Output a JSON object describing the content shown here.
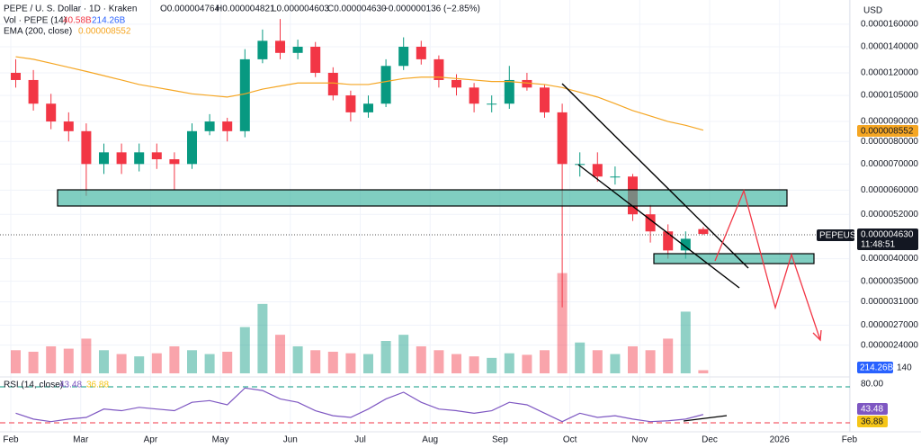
{
  "chart_data": [
    {
      "type": "candlestick",
      "header": {
        "symbol": "PEPE / U. S. Dollar · 1D · Kraken",
        "open": "O0.000004764",
        "high": "H0.000004821",
        "low": "L0.000004603",
        "close": "C0.000004630",
        "change": "−0.000000136 (−2.85%)"
      },
      "ema_label": "EMA (200, close)",
      "ema_value": "0.000008552",
      "axis_unit": "USD",
      "ticker": "PEPEUSD",
      "last_price": "0.000004630",
      "countdown": "11:48:51",
      "x_labels": [
        "Feb",
        "Mar",
        "Apr",
        "May",
        "Jun",
        "Jul",
        "Aug",
        "Sep",
        "Oct",
        "Nov",
        "Dec",
        "2026",
        "Feb"
      ],
      "log_scale": true,
      "ylim": [
        2.2e-06,
        1.75e-05
      ],
      "yticks": [
        {
          "value": 1.6e-05,
          "label": "0.0000160000"
        },
        {
          "value": 1.4e-05,
          "label": "0.0000140000"
        },
        {
          "value": 1.2e-05,
          "label": "0.0000120000"
        },
        {
          "value": 1.05e-05,
          "label": "0.0000105000"
        },
        {
          "value": 9e-06,
          "label": "0.0000090000"
        },
        {
          "value": 8e-06,
          "label": "0.0000080000"
        },
        {
          "value": 7e-06,
          "label": "0.0000070000"
        },
        {
          "value": 6e-06,
          "label": "0.0000060000"
        },
        {
          "value": 5.2e-06,
          "label": "0.0000052000"
        },
        {
          "value": 4e-06,
          "label": "0.0000040000"
        },
        {
          "value": 3.5e-06,
          "label": "0.0000035000"
        },
        {
          "value": 3.1e-06,
          "label": "0.0000031000"
        },
        {
          "value": 2.7e-06,
          "label": "0.0000027000"
        },
        {
          "value": 2.4e-06,
          "label": "0.0000024000"
        }
      ],
      "up_color": "#089981",
      "down_color": "#f23645",
      "open": [
        1.2e-05,
        1.15e-05,
        1e-05,
        9e-06,
        8.5e-06,
        7e-06,
        7.5e-06,
        7e-06,
        7.5e-06,
        7.2e-06,
        7e-06,
        8.5e-06,
        9e-06,
        8.5e-06,
        1.3e-05,
        1.45e-05,
        1.35e-05,
        1.4e-05,
        1.2e-05,
        1.05e-05,
        9.5e-06,
        1e-05,
        1.25e-05,
        1.4e-05,
        1.3e-05,
        1.15e-05,
        1.1e-05,
        1e-05,
        1e-05,
        1.15e-05,
        1.1e-05,
        9.5e-06,
        7e-06,
        7e-06,
        6.5e-06,
        6.5e-06,
        5.2e-06,
        4.7e-06,
        4.2e-06,
        4.764e-06
      ],
      "high": [
        1.3e-05,
        1.22e-05,
        1.06e-05,
        9.5e-06,
        8.9e-06,
        7.9e-06,
        7.9e-06,
        7.9e-06,
        7.9e-06,
        7.5e-06,
        8.9e-06,
        9.4e-06,
        9.2e-06,
        1.38e-05,
        1.55e-05,
        1.65e-05,
        1.46e-05,
        1.44e-05,
        1.24e-05,
        1.08e-05,
        1.05e-05,
        1.3e-05,
        1.48e-05,
        1.45e-05,
        1.33e-05,
        1.19e-05,
        1.13e-05,
        1.05e-05,
        1.25e-05,
        1.2e-05,
        1.12e-05,
        1e-05,
        7.5e-06,
        7.5e-06,
        6.9e-06,
        6.6e-06,
        5.5e-06,
        4.9e-06,
        4.7e-06,
        4.821e-06
      ],
      "low": [
        1.1e-05,
        9.6e-06,
        8.6e-06,
        8e-06,
        5.8e-06,
        6.6e-06,
        6.6e-06,
        6.7e-06,
        6.8e-06,
        6e-06,
        6.8e-06,
        8.3e-06,
        8e-06,
        8.2e-06,
        1.27e-05,
        1.3e-05,
        1.3e-05,
        1.17e-05,
        1.02e-05,
        9e-06,
        9.2e-06,
        9.8e-06,
        1.22e-05,
        1.26e-05,
        1.1e-05,
        1.05e-05,
        9.5e-06,
        9.5e-06,
        9.7e-06,
        1.08e-05,
        9.2e-06,
        3e-06,
        6.5e-06,
        6.3e-06,
        6.2e-06,
        5e-06,
        4.4e-06,
        4e-06,
        4e-06,
        4.603e-06
      ],
      "close": [
        1.15e-05,
        1e-05,
        9e-06,
        8.5e-06,
        7e-06,
        7.5e-06,
        7e-06,
        7.5e-06,
        7.2e-06,
        7e-06,
        8.5e-06,
        9e-06,
        8.5e-06,
        1.3e-05,
        1.45e-05,
        1.35e-05,
        1.4e-05,
        1.2e-05,
        1.05e-05,
        9.5e-06,
        1e-05,
        1.25e-05,
        1.4e-05,
        1.3e-05,
        1.15e-05,
        1.1e-05,
        1e-05,
        1e-05,
        1.15e-05,
        1.1e-05,
        9.5e-06,
        7e-06,
        7e-06,
        6.5e-06,
        6.5e-06,
        5.2e-06,
        4.7e-06,
        4.2e-06,
        4.5e-06,
        4.63e-06
      ],
      "ema": {
        "color": "#f5a623",
        "values": [
          1.32e-05,
          1.3e-05,
          1.27e-05,
          1.24e-05,
          1.21e-05,
          1.18e-05,
          1.15e-05,
          1.12e-05,
          1.1e-05,
          1.08e-05,
          1.06e-05,
          1.05e-05,
          1.04e-05,
          1.06e-05,
          1.09e-05,
          1.11e-05,
          1.13e-05,
          1.13e-05,
          1.13e-05,
          1.12e-05,
          1.12e-05,
          1.14e-05,
          1.16e-05,
          1.17e-05,
          1.17e-05,
          1.16e-05,
          1.15e-05,
          1.14e-05,
          1.14e-05,
          1.13e-05,
          1.12e-05,
          1.1e-05,
          1.07e-05,
          1.04e-05,
          1e-05,
          9.6e-06,
          9.3e-06,
          9e-06,
          8.8e-06,
          8.552e-06
        ]
      }
    },
    {
      "type": "volume",
      "label": "Vol · PEPE (14)",
      "current": "40.58B",
      "average": "214.26B",
      "axis_label": "140",
      "ylim": [
        0,
        1400
      ],
      "values": [
        300,
        280,
        350,
        320,
        450,
        300,
        250,
        220,
        260,
        350,
        300,
        250,
        280,
        600,
        900,
        500,
        350,
        300,
        280,
        260,
        250,
        420,
        500,
        350,
        300,
        250,
        220,
        200,
        260,
        240,
        300,
        1300,
        400,
        300,
        250,
        350,
        300,
        450,
        800,
        40.58
      ]
    },
    {
      "type": "line",
      "label": "RSI (14, close)",
      "value_text": "43.48",
      "ma_text": "36.88",
      "ylim": [
        25,
        85
      ],
      "yticks": [
        {
          "value": 80,
          "label": "80.00"
        }
      ],
      "series": [
        {
          "color": "#7e57c2",
          "values": [
            45,
            38,
            35,
            38,
            40,
            50,
            48,
            52,
            50,
            48,
            58,
            60,
            55,
            75,
            72,
            62,
            58,
            48,
            42,
            40,
            50,
            62,
            70,
            58,
            50,
            48,
            45,
            48,
            58,
            55,
            45,
            35,
            45,
            40,
            42,
            38,
            35,
            36,
            38,
            43.48
          ]
        }
      ]
    }
  ]
}
